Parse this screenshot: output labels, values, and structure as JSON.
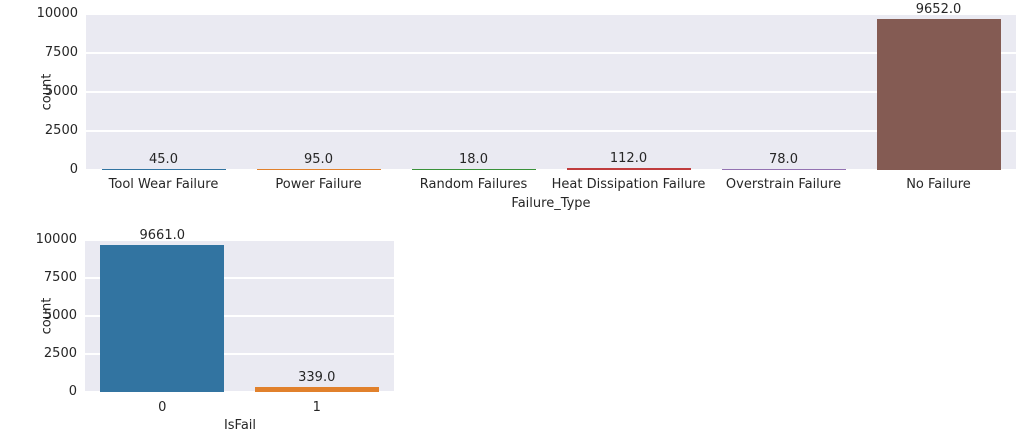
{
  "chart_data": [
    {
      "type": "bar",
      "title": "",
      "xlabel": "Failure_Type",
      "ylabel": "count",
      "categories": [
        "Tool Wear Failure",
        "Power Failure",
        "Random Failures",
        "Heat Dissipation Failure",
        "Overstrain Failure",
        "No Failure"
      ],
      "values": [
        45,
        95,
        18,
        112,
        78,
        9652
      ],
      "bar_labels": [
        "45.0",
        "95.0",
        "18.0",
        "112.0",
        "78.0",
        "9652.0"
      ],
      "yticks": [
        0,
        2500,
        5000,
        7500,
        10000
      ],
      "ytick_labels": [
        "0",
        "2500",
        "5000",
        "7500",
        "10000"
      ],
      "ylim": [
        0,
        10000
      ],
      "bar_colors": [
        "#3274a1",
        "#e1812c",
        "#3a923a",
        "#c03d3e",
        "#9372b2",
        "#845b53"
      ],
      "grid": "on",
      "legend": "none",
      "axes_background": "#eaeaf2",
      "grid_color": "#ffffff",
      "text_color": "#262626"
    },
    {
      "type": "bar",
      "title": "",
      "xlabel": "IsFail",
      "ylabel": "count",
      "categories": [
        "0",
        "1"
      ],
      "values": [
        9661,
        339
      ],
      "bar_labels": [
        "9661.0",
        "339.0"
      ],
      "yticks": [
        0,
        2500,
        5000,
        7500,
        10000
      ],
      "ytick_labels": [
        "0",
        "2500",
        "5000",
        "7500",
        "10000"
      ],
      "ylim": [
        0,
        10000
      ],
      "bar_colors": [
        "#3274a1",
        "#e1812c"
      ],
      "grid": "on",
      "legend": "none",
      "axes_background": "#eaeaf2",
      "grid_color": "#ffffff",
      "text_color": "#262626"
    }
  ]
}
